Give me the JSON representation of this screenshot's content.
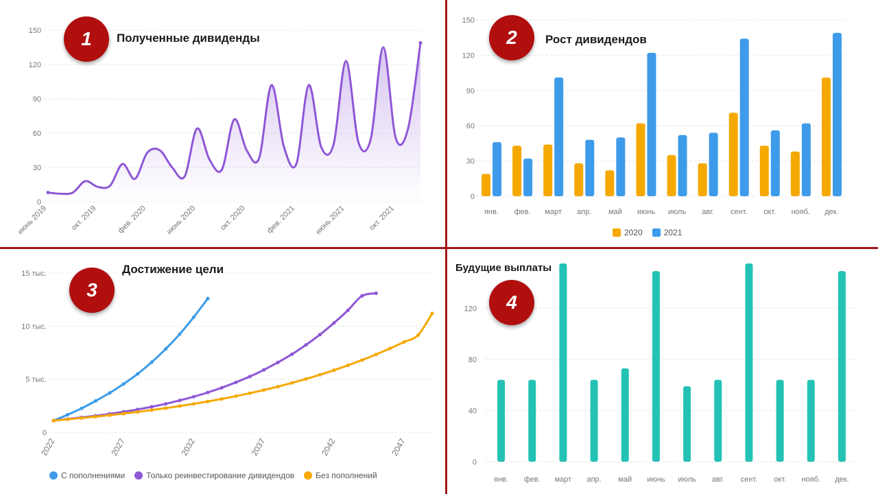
{
  "colors": {
    "divider": "#a31515",
    "badge": "#b10e0e",
    "purple": "#8e57d6",
    "orange": "#f5a800",
    "blue": "#3d9be9",
    "teal": "#24c2b5"
  },
  "panels": [
    {
      "badge": "1",
      "title": "Полученные дивиденды"
    },
    {
      "badge": "2",
      "title": "Рост дивидендов"
    },
    {
      "badge": "3",
      "title": "Достижение цели"
    },
    {
      "badge": "4",
      "title": "Будущие выплаты"
    }
  ],
  "chart_data": [
    {
      "type": "area",
      "title": "Полученные дивиденды",
      "ylim": [
        0,
        150
      ],
      "yticks": [
        "0",
        "30",
        "60",
        "90",
        "120",
        "150"
      ],
      "xtick_labels": [
        "июнь 2019",
        "окт. 2019",
        "фев. 2020",
        "июнь 2020",
        "окт. 2020",
        "фев. 2021",
        "июнь 2021",
        "окт. 2021"
      ],
      "xtick_index": [
        0,
        4,
        8,
        12,
        16,
        20,
        24,
        28
      ],
      "values": [
        8,
        7,
        8,
        18,
        13,
        14,
        33,
        20,
        43,
        45,
        30,
        22,
        64,
        37,
        28,
        72,
        45,
        38,
        102,
        48,
        33,
        102,
        48,
        50,
        123,
        52,
        55,
        135,
        56,
        64,
        139
      ],
      "grid": true
    },
    {
      "type": "bar",
      "title": "Рост дивидендов",
      "categories": [
        "янв.",
        "фев.",
        "март",
        "апр.",
        "май",
        "июнь",
        "июль",
        "авг.",
        "сент.",
        "окт.",
        "нояб.",
        "дек."
      ],
      "series": [
        {
          "name": "2020",
          "values": [
            19,
            43,
            44,
            28,
            22,
            62,
            35,
            28,
            71,
            43,
            38,
            101
          ]
        },
        {
          "name": "2021",
          "values": [
            46,
            32,
            101,
            48,
            50,
            122,
            52,
            54,
            134,
            56,
            62,
            139
          ]
        }
      ],
      "ylim": [
        0,
        150
      ],
      "yticks": [
        "0",
        "30",
        "60",
        "90",
        "120",
        "150"
      ],
      "legend": "bottom",
      "grid": true
    },
    {
      "type": "line",
      "title": "Достижение цели",
      "yticks": [
        "0",
        "5 тыс.",
        "10 тыс.",
        "15 тыс."
      ],
      "ylim": [
        0,
        15000
      ],
      "xtick_labels": [
        "2022",
        "2027",
        "2032",
        "2037",
        "2042",
        "2047"
      ],
      "xlim": [
        2022,
        2049
      ],
      "series": [
        {
          "name": "С пополнениями",
          "x": [
            2022,
            2023,
            2024,
            2025,
            2026,
            2027,
            2028,
            2029,
            2030,
            2031,
            2032,
            2033
          ],
          "values": [
            1100,
            1650,
            2250,
            2950,
            3700,
            4550,
            5500,
            6600,
            7850,
            9250,
            10850,
            12600
          ]
        },
        {
          "name": "Только реинвестирование дивидендов",
          "x": [
            2022,
            2023,
            2024,
            2025,
            2026,
            2027,
            2028,
            2029,
            2030,
            2031,
            2032,
            2033,
            2034,
            2035,
            2036,
            2037,
            2038,
            2039,
            2040,
            2041,
            2042,
            2043,
            2044,
            2045
          ],
          "values": [
            1100,
            1250,
            1400,
            1550,
            1730,
            1930,
            2150,
            2400,
            2680,
            3000,
            3350,
            3750,
            4200,
            4700,
            5250,
            5880,
            6580,
            7350,
            8230,
            9200,
            10300,
            11500,
            12850,
            13100
          ]
        },
        {
          "name": "Без пополнений",
          "x": [
            2022,
            2023,
            2024,
            2025,
            2026,
            2027,
            2028,
            2029,
            2030,
            2031,
            2032,
            2033,
            2034,
            2035,
            2036,
            2037,
            2038,
            2039,
            2040,
            2041,
            2042,
            2043,
            2044,
            2045,
            2046,
            2047,
            2048,
            2049
          ],
          "values": [
            1100,
            1220,
            1340,
            1470,
            1610,
            1760,
            1920,
            2090,
            2270,
            2470,
            2680,
            2900,
            3140,
            3400,
            3680,
            3980,
            4300,
            4650,
            5020,
            5420,
            5850,
            6310,
            6800,
            7330,
            7900,
            8510,
            9160,
            11200
          ]
        }
      ],
      "legend": "bottom",
      "grid": true
    },
    {
      "type": "bar",
      "title": "Будущие выплаты",
      "categories": [
        "янв.",
        "фев.",
        "март",
        "апр.",
        "май",
        "июнь",
        "июль",
        "авг.",
        "сент.",
        "окт.",
        "нояб.",
        "дек."
      ],
      "values": [
        64,
        64,
        155,
        64,
        73,
        149,
        59,
        64,
        155,
        64,
        64,
        149
      ],
      "ylim": [
        0,
        155
      ],
      "yticks": [
        "0",
        "40",
        "80",
        "120"
      ],
      "grid": true
    }
  ]
}
